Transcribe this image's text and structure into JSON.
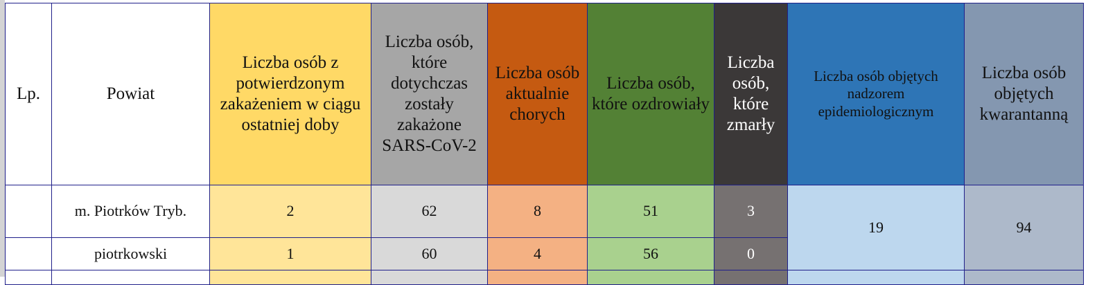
{
  "table": {
    "headers": [
      "Lp.",
      "Powiat",
      "Liczba osób z potwierdzonym zakażeniem w ciągu ostatniej doby",
      "Liczba osób, które dotychczas zostały zakażone SARS-CoV-2",
      "Liczba osób aktualnie chorych",
      "Liczba osób, które ozdrowiały",
      "Liczba osób, które zmarły",
      "Liczba osób objętych nadzorem epidemiologicznym",
      "Liczba osób objętych kwarantanną"
    ],
    "rows": [
      {
        "lp": "",
        "powiat": "m. Piotrków Tryb.",
        "new_cases": "2",
        "total_cases": "62",
        "active": "8",
        "recovered": "51",
        "deaths": "3"
      },
      {
        "lp": "",
        "powiat": "piotrkowski",
        "new_cases": "1",
        "total_cases": "60",
        "active": "4",
        "recovered": "56",
        "deaths": "0"
      }
    ],
    "merged": {
      "surveillance": "19",
      "quarantine": "94"
    }
  },
  "colors": {
    "yellow": "#ffd966",
    "gray": "#a6a6a6",
    "orange": "#c55a11",
    "green": "#538135",
    "dark": "#3b3838",
    "blue": "#2e75b6",
    "slate": "#8497b0",
    "border": "#1f1f8a"
  }
}
